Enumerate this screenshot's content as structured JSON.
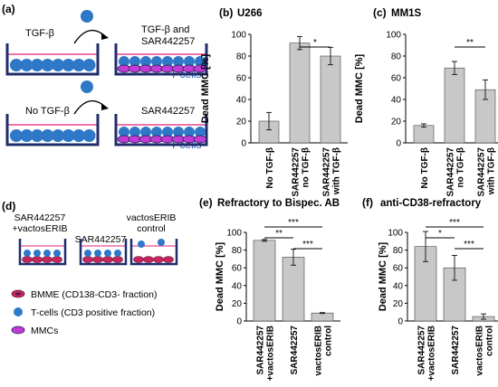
{
  "panel_a": {
    "label": "(a)",
    "top_left": "TGF-β",
    "top_right": "TGF-β and\nSAR442257",
    "top_tcells": "T cells",
    "bottom_left": "No TGF-β",
    "bottom_right": "SAR442257",
    "bottom_tcells": "T cells"
  },
  "panel_d": {
    "label": "(d)",
    "wells": [
      "SAR442257\n+vactosERIB",
      "SAR442257",
      "vactosERIB\ncontrol"
    ],
    "legend": [
      {
        "text": "BMME (CD138-CD3- fraction)",
        "color": "#e0227a"
      },
      {
        "text": "T-cells  (CD3 positive fraction)",
        "color": "#2e78c7"
      },
      {
        "text": "MMCs",
        "color": "#c23bd4"
      }
    ]
  },
  "colors": {
    "bar": "#c8c8c8",
    "bar_stroke": "#444444",
    "tcell": "#2e78c7",
    "mmc": "#c23bd4",
    "well": "#1f2d6b",
    "tcell_text": "#1f5fb4"
  },
  "chart_data": [
    {
      "id": "b",
      "type": "bar",
      "label": "(b)",
      "title": "U266",
      "ylabel": "Dead MMC [%]",
      "ylim": [
        0,
        100
      ],
      "yticks": [
        0,
        20,
        40,
        60,
        80,
        100
      ],
      "categories": [
        "No TGF-β",
        "SAR442257\nno TGF-β",
        "SAR442257\nwith TGF-β"
      ],
      "values": [
        20,
        92,
        80
      ],
      "errors": [
        8,
        6,
        8
      ],
      "significance": [
        {
          "from": 1,
          "to": 2,
          "text": "*"
        }
      ]
    },
    {
      "id": "c",
      "type": "bar",
      "label": "(c)",
      "title": "MM1S",
      "ylabel": "Dead MMC [%]",
      "ylim": [
        0,
        100
      ],
      "yticks": [
        0,
        20,
        40,
        60,
        80,
        100
      ],
      "categories": [
        "No TGF-β",
        "SAR442257\nno TGF-β",
        "SAR442257\nwith TGF-β"
      ],
      "values": [
        16,
        69,
        49
      ],
      "errors": [
        1.5,
        6,
        9
      ],
      "significance": [
        {
          "from": 1,
          "to": 2,
          "text": "**"
        }
      ]
    },
    {
      "id": "e",
      "type": "bar",
      "label": "(e)",
      "title": "Refractory to Bispec. AB",
      "ylabel": "Dead MMC [%]",
      "ylim": [
        0,
        100
      ],
      "yticks": [
        0,
        20,
        40,
        60,
        80,
        100
      ],
      "categories": [
        "SAR442257\n+vactosERIB",
        "SAR442257",
        "vactosERIB\ncontrol"
      ],
      "values": [
        91,
        72,
        9
      ],
      "errors": [
        1,
        9,
        0.5
      ],
      "significance": [
        {
          "from": 0,
          "to": 2,
          "text": "***"
        },
        {
          "from": 0,
          "to": 1,
          "text": "**"
        },
        {
          "from": 1,
          "to": 2,
          "text": "***"
        }
      ]
    },
    {
      "id": "f",
      "type": "bar",
      "label": "(f)",
      "title": "anti-CD38-refractory",
      "ylabel": "Dead MMC [%]",
      "ylim": [
        0,
        100
      ],
      "yticks": [
        0,
        20,
        40,
        60,
        80,
        100
      ],
      "categories": [
        "SAR442257\n+vactosERIB",
        "SAR442257",
        "vactosERIB\ncontrol"
      ],
      "values": [
        84,
        60,
        5
      ],
      "errors": [
        17,
        14,
        3
      ],
      "significance": [
        {
          "from": 0,
          "to": 2,
          "text": "***"
        },
        {
          "from": 0,
          "to": 1,
          "text": "*"
        },
        {
          "from": 1,
          "to": 2,
          "text": "***"
        }
      ]
    }
  ]
}
